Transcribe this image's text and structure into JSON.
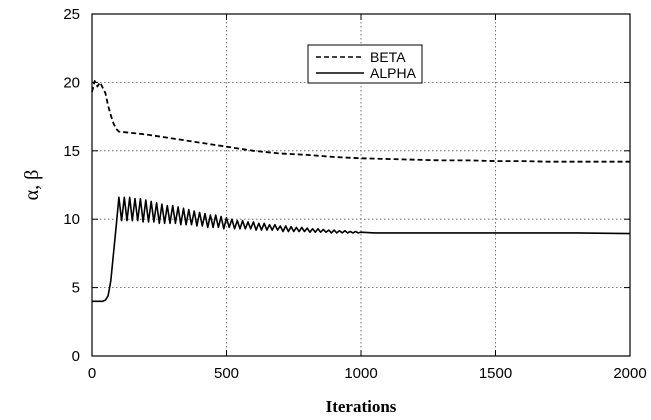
{
  "chart_data": {
    "type": "line",
    "title": "",
    "xlabel": "Iterations",
    "ylabel": "α, β",
    "xlim": [
      0,
      2000
    ],
    "ylim": [
      0,
      25
    ],
    "xticks": [
      0,
      500,
      1000,
      1500,
      2000
    ],
    "yticks": [
      0,
      5,
      10,
      15,
      20,
      25
    ],
    "grid": true,
    "legend_position": "top-right",
    "series": [
      {
        "name": "BETA",
        "line_style": "dashed",
        "x": [
          0,
          10,
          20,
          30,
          40,
          50,
          60,
          70,
          80,
          90,
          100,
          150,
          200,
          300,
          400,
          500,
          600,
          700,
          800,
          900,
          1000,
          1100,
          1200,
          1300,
          1400,
          1500,
          1600,
          1700,
          1800,
          1900,
          2000
        ],
        "y": [
          19.3,
          20.1,
          19.7,
          20.0,
          19.6,
          19.2,
          18.3,
          17.6,
          17.0,
          16.6,
          16.4,
          16.3,
          16.2,
          15.9,
          15.6,
          15.3,
          15.0,
          14.8,
          14.7,
          14.55,
          14.45,
          14.4,
          14.35,
          14.3,
          14.3,
          14.25,
          14.25,
          14.2,
          14.2,
          14.2,
          14.2
        ]
      },
      {
        "name": "ALPHA",
        "line_style": "solid",
        "x": [
          0,
          20,
          40,
          50,
          60,
          70,
          80,
          90,
          100,
          110,
          120,
          130,
          140,
          150,
          160,
          170,
          180,
          190,
          200,
          210,
          220,
          230,
          240,
          250,
          260,
          270,
          280,
          290,
          300,
          310,
          320,
          330,
          340,
          350,
          360,
          370,
          380,
          390,
          400,
          410,
          420,
          430,
          440,
          450,
          460,
          470,
          480,
          490,
          500,
          510,
          520,
          530,
          540,
          550,
          560,
          570,
          580,
          590,
          600,
          610,
          620,
          630,
          640,
          650,
          660,
          670,
          680,
          690,
          700,
          710,
          720,
          730,
          740,
          750,
          760,
          770,
          780,
          790,
          800,
          810,
          820,
          830,
          840,
          850,
          860,
          870,
          880,
          890,
          900,
          910,
          920,
          930,
          940,
          950,
          960,
          970,
          980,
          990,
          1000,
          1050,
          1100,
          1150,
          1200,
          1300,
          1400,
          1500,
          1600,
          1800,
          2000
        ],
        "y": [
          4.0,
          4.0,
          4.0,
          4.1,
          4.4,
          5.5,
          7.5,
          9.5,
          11.6,
          9.9,
          11.6,
          9.9,
          11.6,
          9.9,
          11.5,
          9.9,
          11.5,
          9.8,
          11.4,
          9.8,
          11.3,
          9.8,
          11.2,
          9.7,
          11.1,
          9.7,
          11.0,
          9.7,
          11.0,
          9.7,
          10.9,
          9.6,
          10.8,
          9.6,
          10.7,
          9.6,
          10.6,
          9.5,
          10.5,
          9.5,
          10.4,
          9.4,
          10.3,
          9.4,
          10.3,
          9.4,
          10.2,
          9.3,
          10.1,
          9.4,
          10.0,
          9.3,
          9.9,
          9.3,
          9.9,
          9.3,
          9.8,
          9.3,
          9.8,
          9.2,
          9.7,
          9.2,
          9.7,
          9.2,
          9.6,
          9.2,
          9.6,
          9.2,
          9.5,
          9.1,
          9.5,
          9.1,
          9.45,
          9.1,
          9.4,
          9.1,
          9.4,
          9.1,
          9.35,
          9.05,
          9.3,
          9.05,
          9.3,
          9.05,
          9.25,
          9.05,
          9.2,
          9.0,
          9.2,
          9.0,
          9.15,
          9.0,
          9.15,
          9.0,
          9.1,
          9.0,
          9.1,
          9.0,
          9.05,
          9.0,
          9.0,
          9.0,
          9.0,
          9.0,
          9.0,
          9.0,
          9.0,
          9.0,
          8.95
        ]
      }
    ]
  }
}
